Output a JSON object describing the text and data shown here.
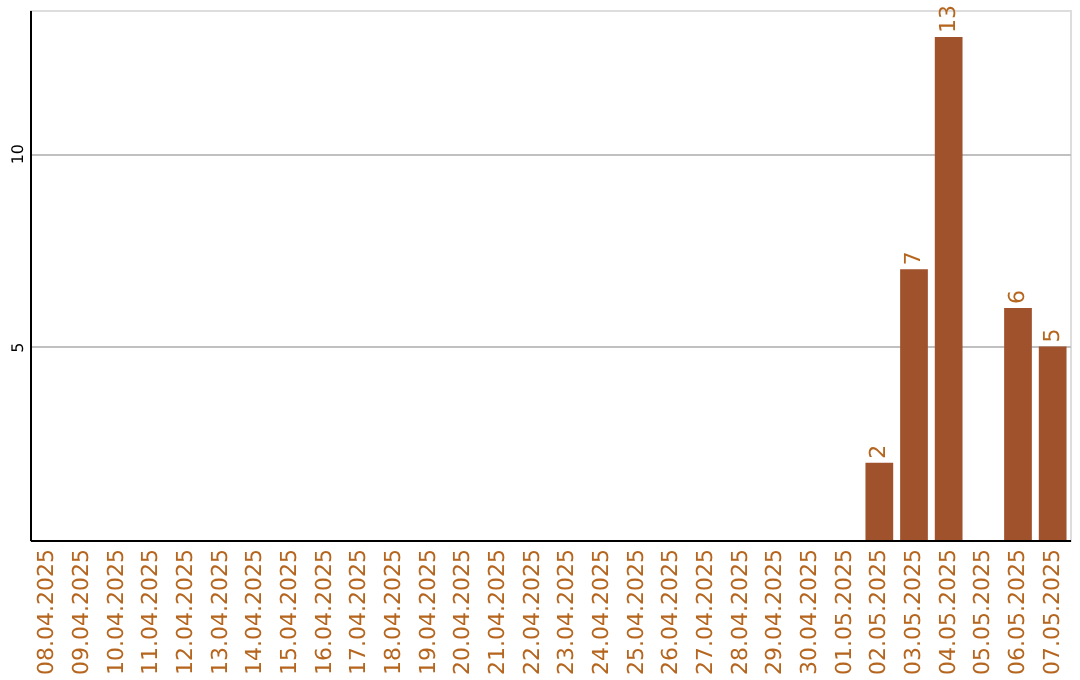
{
  "chart_data": {
    "type": "bar",
    "categories": [
      "08.04.2025",
      "09.04.2025",
      "10.04.2025",
      "11.04.2025",
      "12.04.2025",
      "13.04.2025",
      "14.04.2025",
      "15.04.2025",
      "16.04.2025",
      "17.04.2025",
      "18.04.2025",
      "19.04.2025",
      "20.04.2025",
      "21.04.2025",
      "22.04.2025",
      "23.04.2025",
      "24.04.2025",
      "25.04.2025",
      "26.04.2025",
      "27.04.2025",
      "28.04.2025",
      "29.04.2025",
      "30.04.2025",
      "01.05.2025",
      "02.05.2025",
      "03.05.2025",
      "04.05.2025",
      "05.05.2025",
      "06.05.2025",
      "07.05.2025"
    ],
    "values": [
      null,
      null,
      null,
      null,
      null,
      null,
      null,
      null,
      null,
      null,
      null,
      null,
      null,
      null,
      null,
      null,
      null,
      null,
      null,
      null,
      null,
      null,
      null,
      null,
      2,
      7,
      13,
      null,
      6,
      5
    ],
    "color": "#a0522d",
    "ylim": [
      0,
      13.7
    ],
    "yticks": [
      5,
      10
    ],
    "grid": "y",
    "data_labels": true
  }
}
